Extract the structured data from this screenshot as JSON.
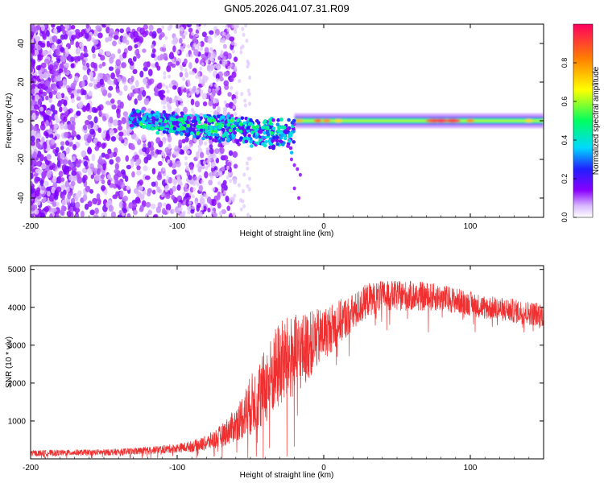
{
  "figure_title": "GN05.2026.041.07.31.R09",
  "chart_data": [
    {
      "type": "heatmap",
      "title": "GN05.2026.041.07.31.R09",
      "xlabel": "Height of straight line (km)",
      "ylabel": "Frequency (Hz)",
      "xlim": [
        -200,
        150
      ],
      "ylim": [
        -50,
        50
      ],
      "xticks": [
        -200,
        -100,
        0,
        100
      ],
      "yticks": [
        -40,
        -20,
        0,
        20,
        40
      ],
      "colorbar": {
        "label": "Normalized spectral amplitude",
        "range": [
          0,
          1
        ],
        "ticks": [
          0.0,
          0.2,
          0.4,
          0.6,
          0.8
        ],
        "tick_labels": [
          "0.0",
          "0.2",
          "0.4",
          "0.6",
          "0.8"
        ],
        "colormap": [
          "#ffffff",
          "#8a00ff",
          "#2020ff",
          "#00d8ff",
          "#00ff60",
          "#ffff00",
          "#ff8000",
          "#ff0040"
        ]
      },
      "description_segments": [
        {
          "x_range": [
            -200,
            -130
          ],
          "pattern": "scattered noise across all frequencies",
          "amplitude": 0.15
        },
        {
          "x_range": [
            -130,
            -20
          ],
          "pattern": "broadened band near 0 Hz sloping to about -10 Hz",
          "amplitude": 0.4
        },
        {
          "x_range": [
            -20,
            150
          ],
          "pattern": "narrow band centered at 0 Hz",
          "amplitude": 0.6
        },
        {
          "x_range": [
            75,
            95
          ],
          "pattern": "peak near 0 Hz",
          "amplitude": 0.95
        }
      ]
    },
    {
      "type": "line",
      "xlabel": "Height of straight line (km)",
      "ylabel": "SNR (10 * v/v)",
      "xlim": [
        -200,
        150
      ],
      "ylim": [
        0,
        5100
      ],
      "xticks": [
        -200,
        -100,
        0,
        100
      ],
      "yticks": [
        1000,
        2000,
        3000,
        4000,
        5000
      ],
      "color": "#f03030",
      "series": [
        {
          "name": "SNR",
          "x": [
            -200,
            -180,
            -160,
            -140,
            -120,
            -100,
            -90,
            -80,
            -70,
            -60,
            -50,
            -40,
            -30,
            -20,
            -10,
            0,
            10,
            20,
            30,
            40,
            50,
            60,
            70,
            80,
            90,
            100,
            110,
            120,
            130,
            140,
            150
          ],
          "values": [
            150,
            160,
            170,
            180,
            220,
            280,
            330,
            420,
            600,
            900,
            1400,
            1900,
            2500,
            2700,
            3000,
            3300,
            3600,
            3850,
            4200,
            4300,
            4300,
            4300,
            4280,
            4250,
            4180,
            4100,
            4000,
            3950,
            3900,
            3850,
            3800
          ],
          "noise_amplitude": [
            80,
            80,
            80,
            90,
            100,
            120,
            150,
            200,
            300,
            450,
            800,
            1000,
            1200,
            1100,
            900,
            700,
            600,
            500,
            450,
            400,
            400,
            400,
            380,
            360,
            340,
            320,
            320,
            320,
            320,
            320,
            320
          ]
        }
      ]
    }
  ]
}
